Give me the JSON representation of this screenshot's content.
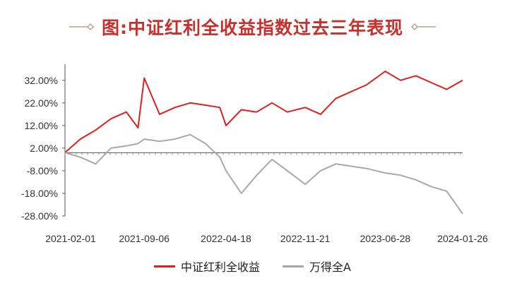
{
  "title": "图:中证红利全收益指数过去三年表现",
  "colors": {
    "accent": "#c9302c",
    "red_series": "#e02020",
    "gray_series": "#a8a8a8",
    "ornament": "#b8a38e"
  },
  "chart_data": {
    "type": "line",
    "title": "图:中证红利全收益指数过去三年表现",
    "xlabel": "",
    "ylabel": "",
    "ylim": [
      -28,
      36
    ],
    "yticks": [
      "32.00%",
      "22.00%",
      "12.00%",
      "2.00%",
      "-8.00%",
      "-18.00%",
      "-28.00%"
    ],
    "ytick_values": [
      32,
      22,
      12,
      2,
      -8,
      -18,
      -28
    ],
    "xticks": [
      "2021-02-01",
      "2021-09-06",
      "2022-04-18",
      "2022-11-21",
      "2023-06-28",
      "2024-01-26"
    ],
    "x_dates": [
      "2021-02-01",
      "2021-03-15",
      "2021-04-26",
      "2021-06-07",
      "2021-07-19",
      "2021-08-20",
      "2021-09-06",
      "2021-10-18",
      "2021-11-29",
      "2022-01-10",
      "2022-02-21",
      "2022-04-01",
      "2022-04-18",
      "2022-05-30",
      "2022-07-11",
      "2022-08-22",
      "2022-10-03",
      "2022-11-21",
      "2023-01-02",
      "2023-02-13",
      "2023-03-27",
      "2023-05-08",
      "2023-06-28",
      "2023-08-09",
      "2023-09-20",
      "2023-11-01",
      "2023-12-13",
      "2024-01-26"
    ],
    "series": [
      {
        "name": "中证红利全收益",
        "color": "#e02020",
        "values": [
          0,
          6,
          10,
          15,
          18,
          11,
          33,
          17,
          20,
          22,
          21,
          20,
          12,
          19,
          18,
          22,
          18,
          20,
          17,
          24,
          27,
          30,
          36,
          32,
          34,
          31,
          28,
          32
        ]
      },
      {
        "name": "万得全A",
        "color": "#a8a8a8",
        "values": [
          0,
          -2,
          -5,
          2,
          3,
          4,
          6,
          5,
          6,
          8,
          4,
          -2,
          -8,
          -18,
          -10,
          -3,
          -8,
          -14,
          -8,
          -5,
          -6,
          -7,
          -9,
          -10,
          -12,
          -15,
          -17,
          -27
        ]
      }
    ],
    "grid": false,
    "legend_position": "bottom-center"
  }
}
